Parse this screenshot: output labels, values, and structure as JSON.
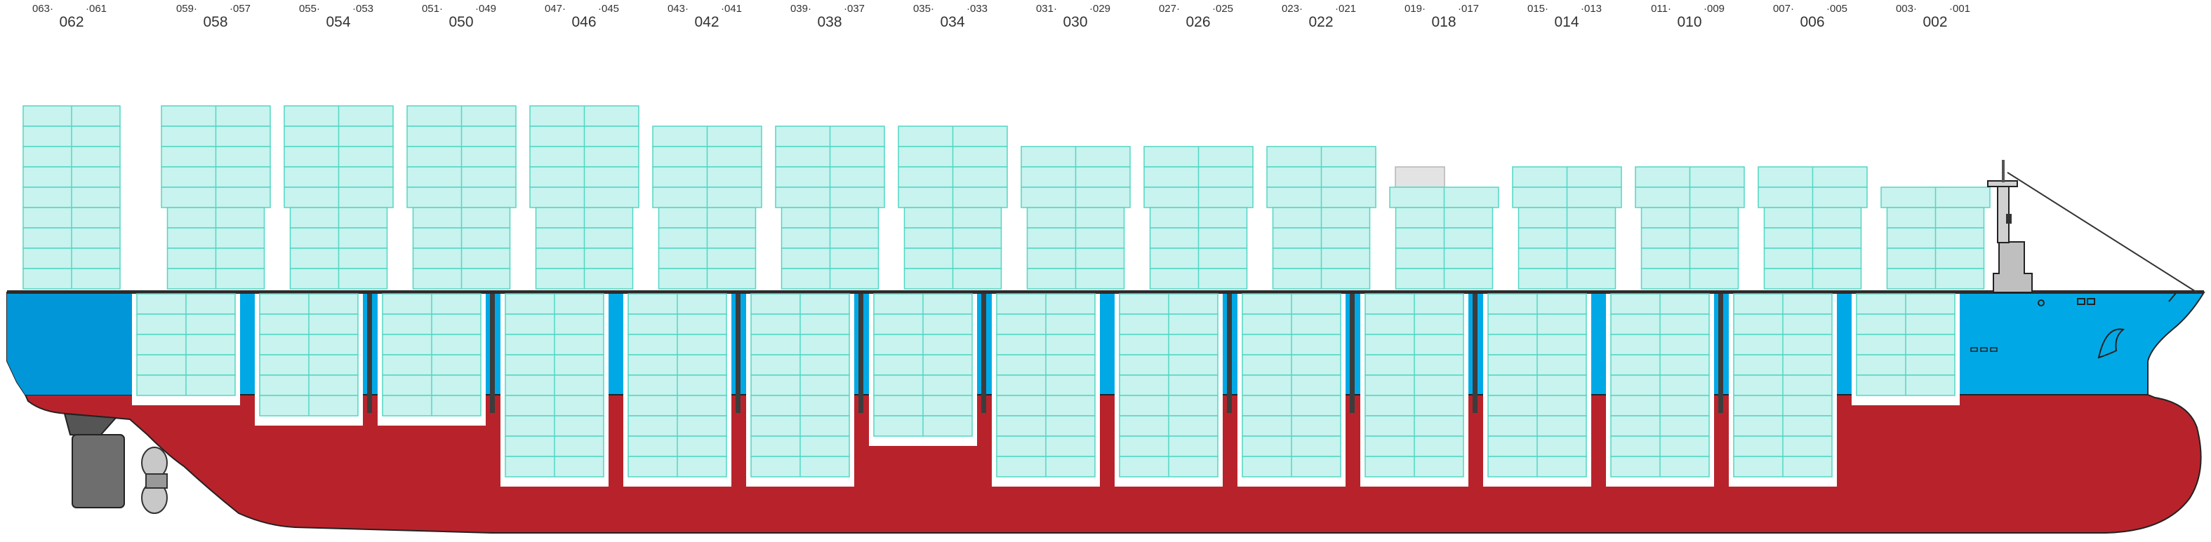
{
  "diagram": {
    "colors": {
      "hull_red": "#b8232b",
      "hull_blue": "#00a9e6",
      "hull_dark_blue": "#0096d8",
      "container_fill": "#c8f3ee",
      "container_stroke": "#52d6c4",
      "hold_frame": "#ffffff",
      "bulkhead": "#3c3c3c",
      "rudder": "#6e6e6e",
      "propeller": "#c8c8c8",
      "bridge": "#bfbfbf",
      "empty_slot": "#e3e3e3"
    },
    "bays": [
      {
        "bay": "062",
        "fore": "063",
        "aft": "061",
        "deck_tiers": 9,
        "hold_tiers": 0
      },
      {
        "bay": "058",
        "fore": "059",
        "aft": "057",
        "deck_tiers": 9,
        "hold_tiers": 5
      },
      {
        "bay": "054",
        "fore": "055",
        "aft": "053",
        "deck_tiers": 9,
        "hold_tiers": 6
      },
      {
        "bay": "050",
        "fore": "051",
        "aft": "049",
        "deck_tiers": 9,
        "hold_tiers": 6
      },
      {
        "bay": "046",
        "fore": "047",
        "aft": "045",
        "deck_tiers": 9,
        "hold_tiers": 9
      },
      {
        "bay": "042",
        "fore": "043",
        "aft": "041",
        "deck_tiers": 8,
        "hold_tiers": 9
      },
      {
        "bay": "038",
        "fore": "039",
        "aft": "037",
        "deck_tiers": 8,
        "hold_tiers": 9
      },
      {
        "bay": "034",
        "fore": "035",
        "aft": "033",
        "deck_tiers": 8,
        "hold_tiers": 7
      },
      {
        "bay": "030",
        "fore": "031",
        "aft": "029",
        "deck_tiers": 7,
        "hold_tiers": 9
      },
      {
        "bay": "026",
        "fore": "027",
        "aft": "025",
        "deck_tiers": 7,
        "hold_tiers": 9
      },
      {
        "bay": "022",
        "fore": "023",
        "aft": "021",
        "deck_tiers": 7,
        "hold_tiers": 9
      },
      {
        "bay": "018",
        "fore": "019",
        "aft": "017",
        "deck_tiers": 6,
        "hold_tiers": 9
      },
      {
        "bay": "014",
        "fore": "015",
        "aft": "013",
        "deck_tiers": 6,
        "hold_tiers": 9
      },
      {
        "bay": "010",
        "fore": "011",
        "aft": "009",
        "deck_tiers": 6,
        "hold_tiers": 9
      },
      {
        "bay": "006",
        "fore": "007",
        "aft": "005",
        "deck_tiers": 6,
        "hold_tiers": 9
      },
      {
        "bay": "002",
        "fore": "003",
        "aft": "001",
        "deck_tiers": 5,
        "hold_tiers": 5
      }
    ]
  }
}
